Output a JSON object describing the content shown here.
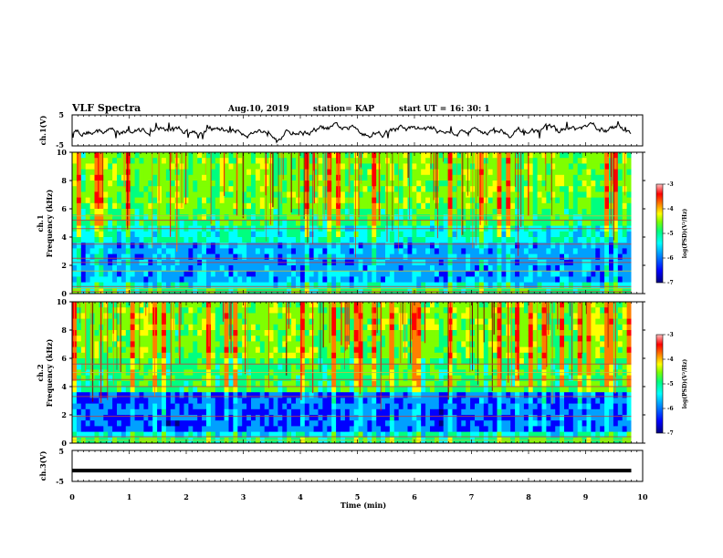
{
  "header": {
    "title": "VLF Spectra",
    "date": "Aug.10, 2019",
    "station": "station= KAP",
    "start": "start  UT  =    16: 30: 1"
  },
  "chart_data": [
    {
      "type": "line",
      "panel": "ch1-waveform",
      "ylabel": "ch.1(V)",
      "ylim": [
        -5,
        5
      ],
      "y_tick_labels": [
        "5",
        "-5"
      ],
      "description_values": "noisy waveform fluctuating roughly between -3 and +3 V over 0-9.8 min"
    },
    {
      "type": "heatmap",
      "panel": "ch1-spectrogram",
      "ylabel": "ch.1\nFrequency (kHz)",
      "ylabel_line1": "ch.1",
      "ylabel_line2": "Frequency (kHz)",
      "ylim": [
        0,
        10
      ],
      "y_tick_labels": [
        "0",
        "2",
        "4",
        "6",
        "8",
        "10"
      ],
      "colorbar": {
        "label": "log(PSD)(V²/Hz)",
        "range": [
          -7,
          -3
        ],
        "tick_labels": [
          "-3",
          "-4",
          "-5",
          "-6",
          "-7"
        ]
      }
    },
    {
      "type": "heatmap",
      "panel": "ch2-spectrogram",
      "ylabel_line1": "ch.2",
      "ylabel_line2": "Frequency (kHz)",
      "ylim": [
        0,
        10
      ],
      "y_tick_labels": [
        "0",
        "2",
        "4",
        "6",
        "8",
        "10"
      ],
      "colorbar": {
        "label": "log(PSD)(V²/Hz)",
        "range": [
          -7,
          -3
        ],
        "tick_labels": [
          "-3",
          "-4",
          "-5",
          "-6",
          "-7"
        ]
      }
    },
    {
      "type": "line",
      "panel": "ch3-waveform",
      "ylabel": "ch.3(V)",
      "ylim": [
        -5,
        5
      ],
      "y_tick_labels": [
        "5",
        "-5"
      ],
      "y": -1.5
    }
  ],
  "x_axis": {
    "label": "Time  (min)",
    "range": [
      0,
      10
    ],
    "tick_labels": [
      "0",
      "1",
      "2",
      "3",
      "4",
      "5",
      "6",
      "7",
      "8",
      "9",
      "10"
    ],
    "data_end": 9.8
  },
  "colors": {
    "cmap": [
      "#00007f",
      "#0000ff",
      "#00a0ff",
      "#00ffff",
      "#00ff7f",
      "#7fff00",
      "#ffff00",
      "#ff7f00",
      "#ff0000",
      "#7f0000"
    ]
  }
}
